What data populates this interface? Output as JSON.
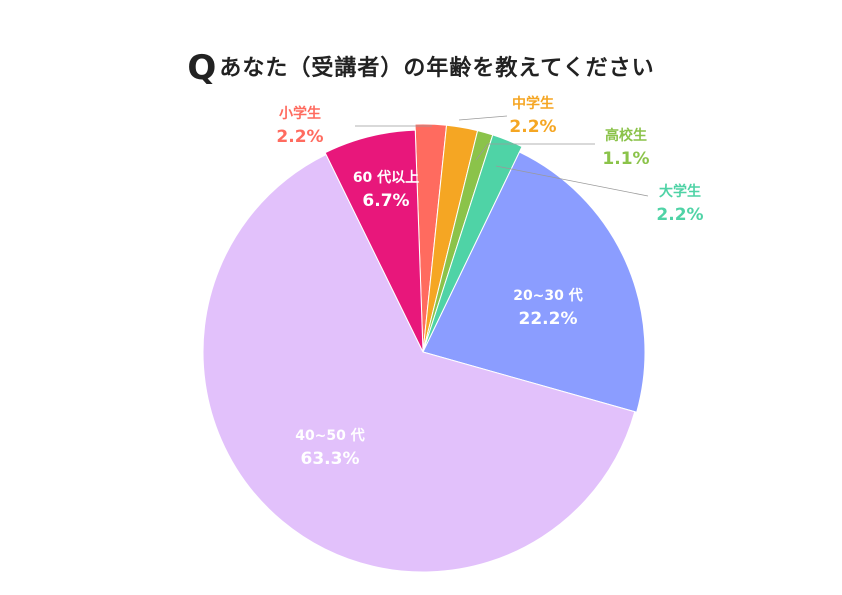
{
  "title": {
    "mark": "Q",
    "text": "あなた（受講者）の年齢を教えてください"
  },
  "chart_data": {
    "type": "pie",
    "title": "あなた（受講者）の年齢を教えてください",
    "slices": [
      {
        "label": "小学生",
        "pct_label": "2.2%",
        "value": 2.2,
        "color": "#ff6b5f"
      },
      {
        "label": "中学生",
        "pct_label": "2.2%",
        "value": 2.2,
        "color": "#f5a623"
      },
      {
        "label": "高校生",
        "pct_label": "1.1%",
        "value": 1.1,
        "color": "#8bc34a"
      },
      {
        "label": "大学生",
        "pct_label": "2.2%",
        "value": 2.2,
        "color": "#4fd3a6"
      },
      {
        "label": "20~30 代",
        "pct_label": "22.2%",
        "value": 22.2,
        "color": "#8b9dff"
      },
      {
        "label": "40~50 代",
        "pct_label": "63.3%",
        "value": 63.3,
        "color": "#e2c1fb"
      },
      {
        "label": "60 代以上",
        "pct_label": "6.7%",
        "value": 6.7,
        "color": "#e8177b"
      }
    ]
  }
}
